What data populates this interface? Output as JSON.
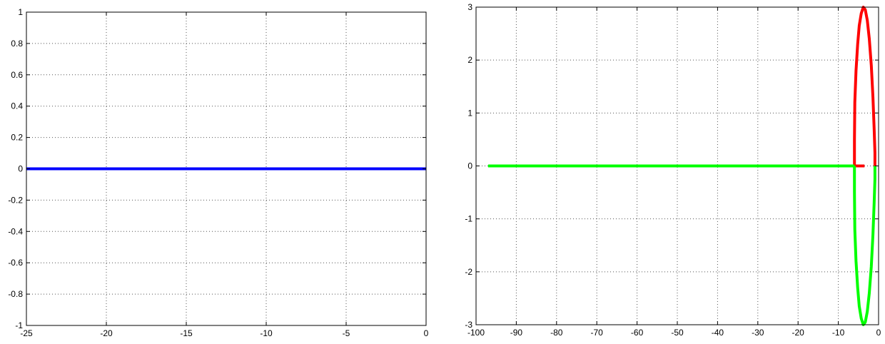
{
  "chart_data": [
    {
      "type": "line",
      "title": "",
      "xlabel": "",
      "ylabel": "",
      "xlim": [
        -25,
        0
      ],
      "ylim": [
        -1,
        1
      ],
      "xticks": [
        -25,
        -20,
        -15,
        -10,
        -5,
        0
      ],
      "yticks": [
        -1,
        -0.8,
        -0.6,
        -0.4,
        -0.2,
        0,
        0.2,
        0.4,
        0.6,
        0.8,
        1
      ],
      "xtick_labels": [
        "-25",
        "-20",
        "-15",
        "-10",
        "-5",
        "0"
      ],
      "ytick_labels": [
        "-1",
        "-0.8",
        "-0.6",
        "-0.4",
        "-0.2",
        "0",
        "0.2",
        "0.4",
        "0.6",
        "0.8",
        "1"
      ],
      "grid": true,
      "series": [
        {
          "color": "#0000ff",
          "x": [
            -25,
            0
          ],
          "y": [
            0,
            0
          ]
        }
      ]
    },
    {
      "type": "line",
      "title": "",
      "xlabel": "",
      "ylabel": "",
      "xlim": [
        -100,
        0
      ],
      "ylim": [
        -3,
        3
      ],
      "xticks": [
        -100,
        -90,
        -80,
        -70,
        -60,
        -50,
        -40,
        -30,
        -20,
        -10,
        0
      ],
      "yticks": [
        -3,
        -2,
        -1,
        0,
        1,
        2,
        3
      ],
      "xtick_labels": [
        "-100",
        "-90",
        "-80",
        "-70",
        "-60",
        "-50",
        "-40",
        "-30",
        "-20",
        "-10",
        "0"
      ],
      "ytick_labels": [
        "-3",
        "-2",
        "-1",
        "0",
        "1",
        "2",
        "3"
      ],
      "grid": true,
      "series": [
        {
          "color": "#ff0000",
          "x": [
            -6.0,
            -6.0,
            -5.9,
            -5.6,
            -5.2,
            -4.8,
            -4.3,
            -3.8,
            -3.3,
            -2.8,
            -2.3,
            -1.8,
            -1.4,
            -1.1,
            -0.9,
            -0.9
          ],
          "y": [
            0,
            0.5,
            1.2,
            1.8,
            2.3,
            2.65,
            2.88,
            3.0,
            2.95,
            2.75,
            2.4,
            1.9,
            1.3,
            0.7,
            0.25,
            0
          ]
        },
        {
          "color": "#ff0000",
          "x": [
            -6.0,
            -3.5
          ],
          "y": [
            0,
            0
          ]
        },
        {
          "color": "#00ff00",
          "x": [
            -97,
            -6.0
          ],
          "y": [
            0,
            0
          ]
        },
        {
          "color": "#00ff00",
          "x": [
            -6.0,
            -6.0,
            -5.9,
            -5.6,
            -5.2,
            -4.8,
            -4.3,
            -3.8,
            -3.3,
            -2.8,
            -2.3,
            -1.8,
            -1.4,
            -1.1,
            -0.9,
            -0.9
          ],
          "y": [
            0,
            -0.5,
            -1.2,
            -1.8,
            -2.3,
            -2.65,
            -2.88,
            -3.0,
            -2.95,
            -2.75,
            -2.4,
            -1.9,
            -1.3,
            -0.7,
            -0.25,
            0
          ]
        }
      ]
    }
  ]
}
